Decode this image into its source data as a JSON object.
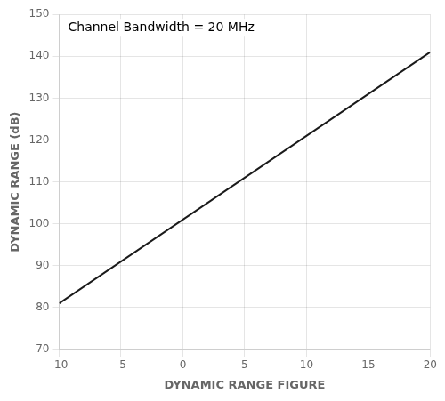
{
  "chart_data": {
    "type": "line",
    "x": [
      -10,
      20
    ],
    "values": [
      81,
      141
    ],
    "color": "#1a1a1a",
    "xlabel": "DYNAMIC RANGE FIGURE",
    "ylabel": "DYNAMIC RANGE (dB)",
    "annotation": "Channel Bandwidth = 20 MHz",
    "xlim": [
      -10,
      20
    ],
    "ylim": [
      70,
      150
    ],
    "xticks": [
      -10,
      -5,
      0,
      5,
      10,
      15,
      20
    ],
    "yticks": [
      70,
      80,
      90,
      100,
      110,
      120,
      130,
      140,
      150
    ],
    "grid": true
  }
}
